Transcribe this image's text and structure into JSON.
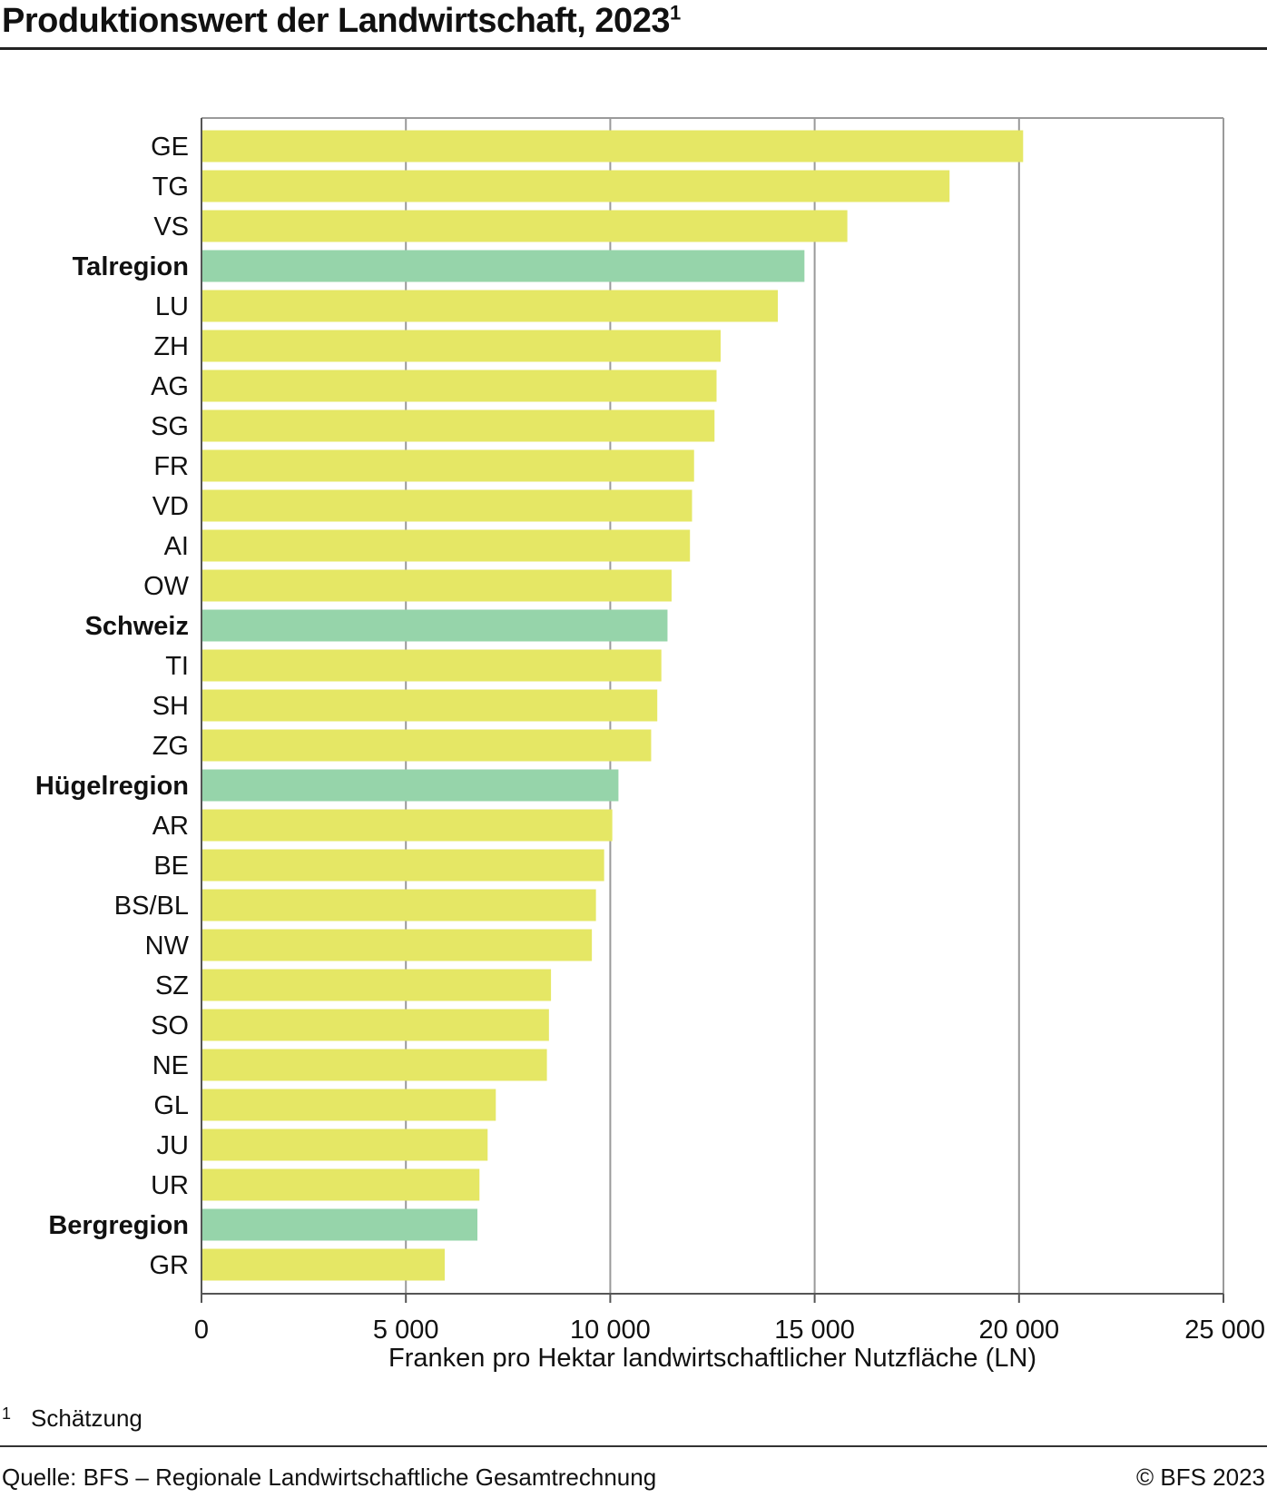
{
  "header": {
    "title": "Produktionswert der Landwirtschaft, 2023",
    "title_footnote_mark": "1"
  },
  "footnote": {
    "mark": "1",
    "text": "Schätzung"
  },
  "footer": {
    "source": "Quelle: BFS – Regionale Landwirtschaftliche Gesamtrechnung",
    "copyright": "© BFS 2023"
  },
  "colors": {
    "canton": "#e5e765",
    "region": "#96d4aa",
    "grid": "#9a9a9a",
    "axis": "#555555"
  },
  "chart_data": {
    "type": "bar",
    "orientation": "horizontal",
    "title": "Produktionswert der Landwirtschaft, 2023",
    "xlabel": "Franken pro Hektar landwirtschaftlicher Nutzfläche (LN)",
    "ylabel": "",
    "xlim": [
      0,
      25000
    ],
    "xticks": [
      0,
      5000,
      10000,
      15000,
      20000,
      25000
    ],
    "xtick_labels": [
      "0",
      "5 000",
      "10 000",
      "15 000",
      "20 000",
      "25 000"
    ],
    "grid": true,
    "categories": [
      "GE",
      "TG",
      "VS",
      "Talregion",
      "LU",
      "ZH",
      "AG",
      "SG",
      "FR",
      "VD",
      "AI",
      "OW",
      "Schweiz",
      "TI",
      "SH",
      "ZG",
      "Hügelregion",
      "AR",
      "BE",
      "BS/BL",
      "NW",
      "SZ",
      "SO",
      "NE",
      "GL",
      "JU",
      "UR",
      "Bergregion",
      "GR"
    ],
    "values": [
      20100,
      18300,
      15800,
      14750,
      14100,
      12700,
      12600,
      12550,
      12050,
      12000,
      11950,
      11500,
      11400,
      11250,
      11150,
      11000,
      10200,
      10050,
      9850,
      9650,
      9550,
      8550,
      8500,
      8450,
      7200,
      7000,
      6800,
      6750,
      5950
    ],
    "highlight": [
      false,
      false,
      false,
      true,
      false,
      false,
      false,
      false,
      false,
      false,
      false,
      false,
      true,
      false,
      false,
      false,
      true,
      false,
      false,
      false,
      false,
      false,
      false,
      false,
      false,
      false,
      false,
      true,
      false
    ]
  }
}
